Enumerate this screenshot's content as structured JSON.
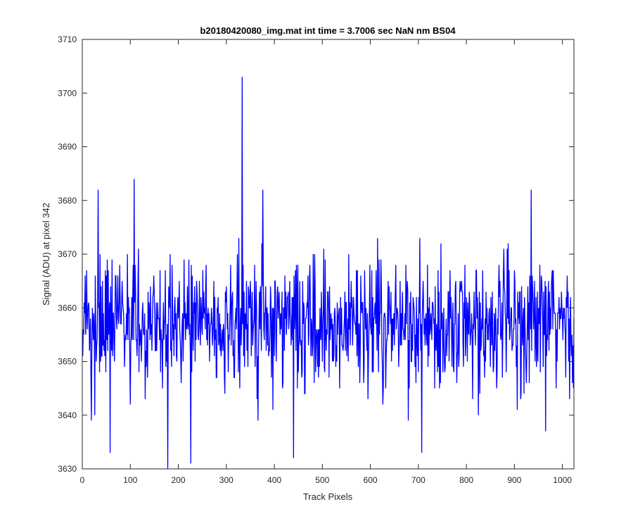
{
  "chart_data": {
    "type": "line",
    "title": "b20180420080_img.mat int time = 3.7006 sec  NaN nm BS04",
    "xlabel": "Track Pixels",
    "ylabel": "Signal (ADU) at pixel 342",
    "xlim": [
      0,
      1024
    ],
    "ylim": [
      3630,
      3710
    ],
    "xticks": [
      0,
      100,
      200,
      300,
      400,
      500,
      600,
      700,
      800,
      900,
      1000
    ],
    "yticks": [
      3630,
      3640,
      3650,
      3660,
      3670,
      3680,
      3690,
      3700,
      3710
    ],
    "grid": false,
    "legend": "none",
    "series": [
      {
        "color": "#0000ff",
        "x_start": 1,
        "x_step": 1,
        "n_points": 1024,
        "baseline": 3657,
        "noise_amplitude": 7,
        "noise_seed": 42,
        "notable_points": [
          {
            "x": 33,
            "y": 3682
          },
          {
            "x": 58,
            "y": 3633
          },
          {
            "x": 108,
            "y": 3684
          },
          {
            "x": 178,
            "y": 3630
          },
          {
            "x": 226,
            "y": 3631
          },
          {
            "x": 333,
            "y": 3703
          },
          {
            "x": 376,
            "y": 3682
          },
          {
            "x": 440,
            "y": 3632
          },
          {
            "x": 707,
            "y": 3633
          },
          {
            "x": 935,
            "y": 3682
          },
          {
            "x": 965,
            "y": 3637
          }
        ]
      }
    ]
  }
}
